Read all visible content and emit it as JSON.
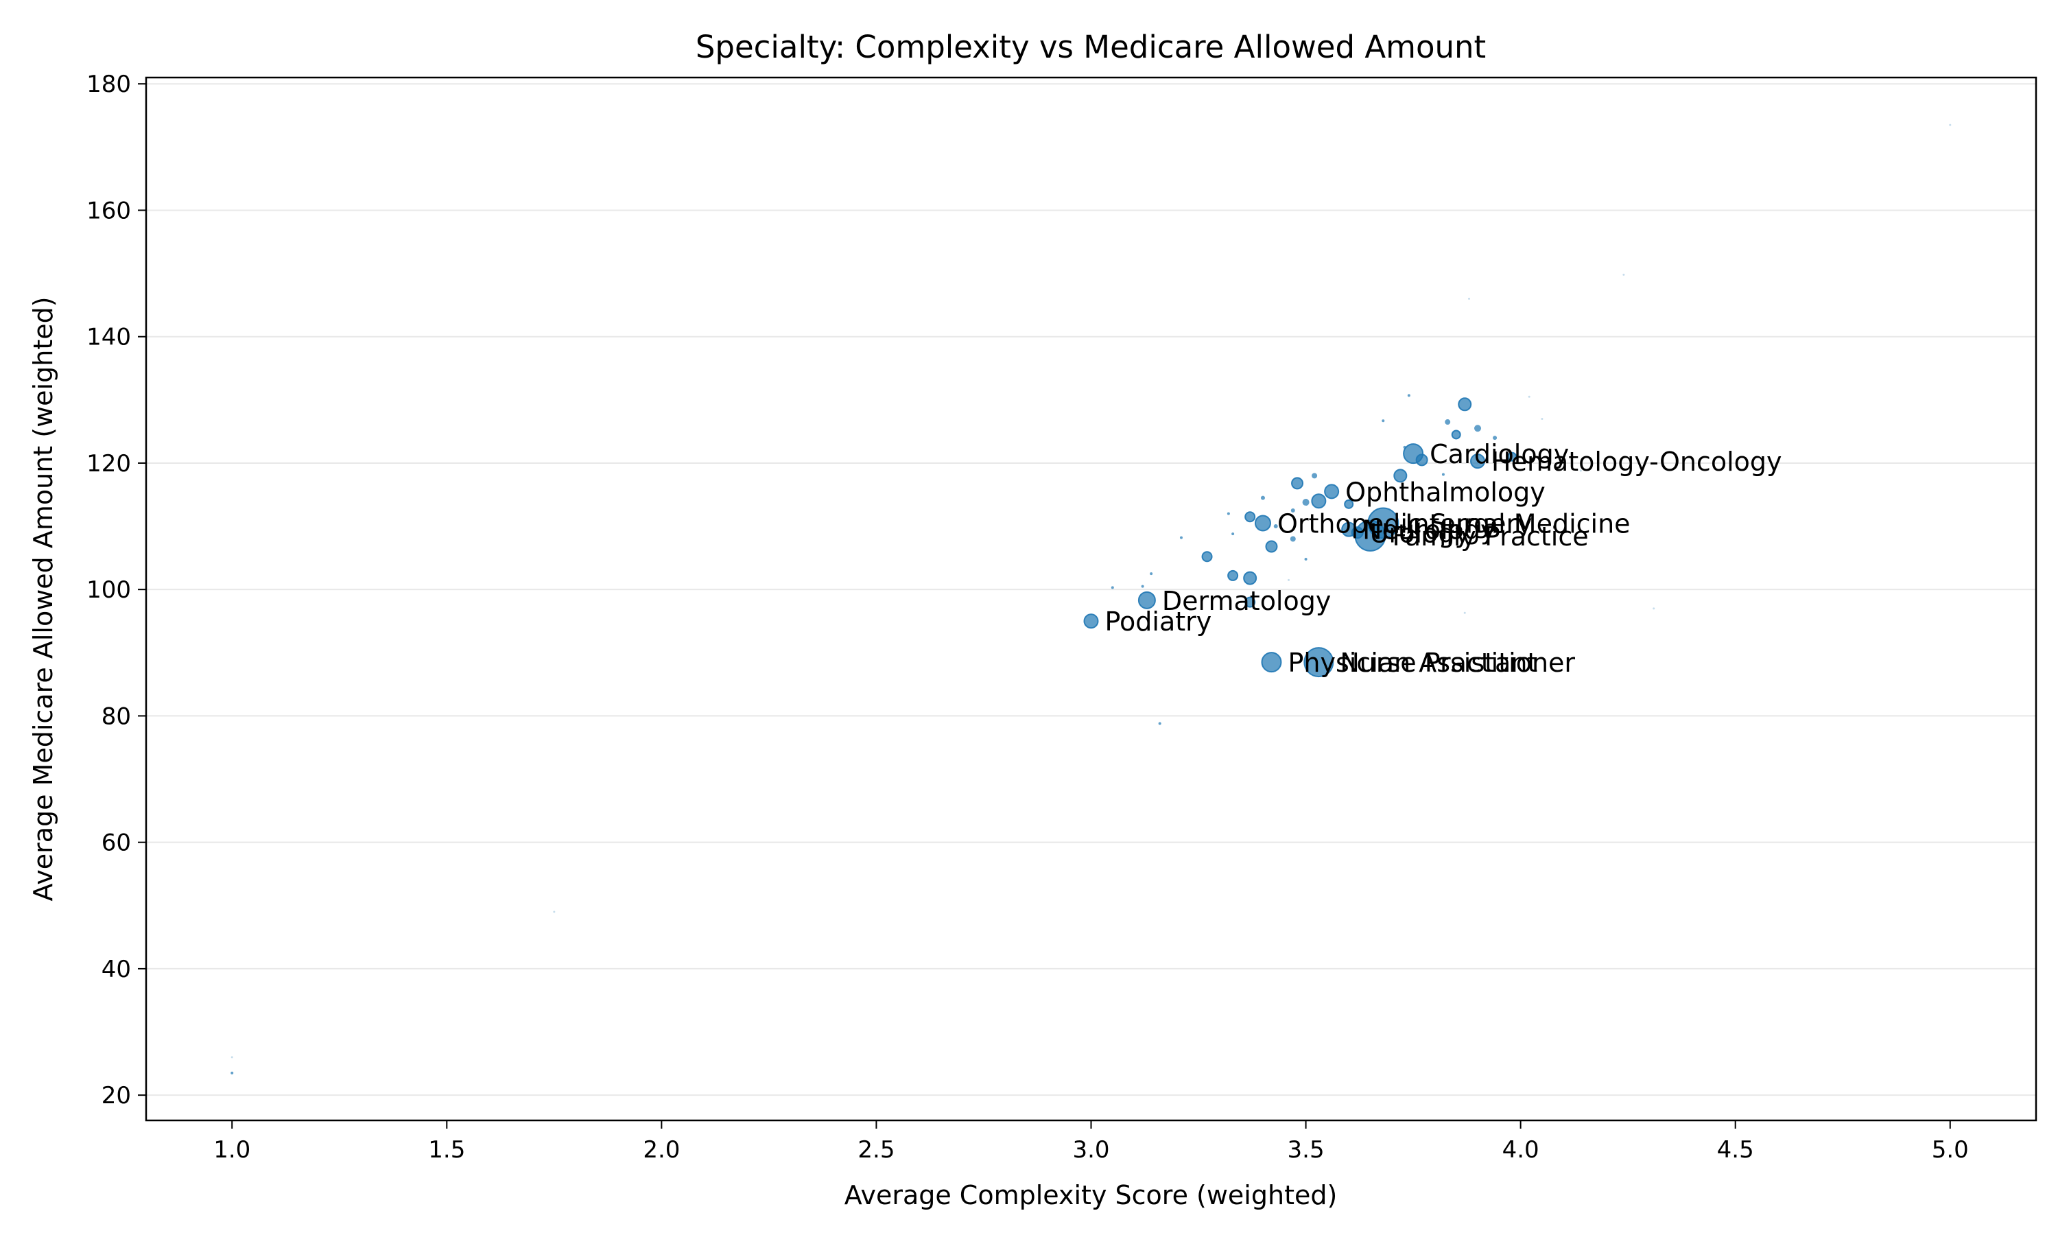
{
  "chart_data": {
    "type": "scatter",
    "title": "Specialty: Complexity vs Medicare Allowed Amount",
    "xlabel": "Average Complexity Score (weighted)",
    "ylabel": "Average Medicare Allowed Amount (weighted)",
    "xlim": [
      0.8,
      5.2
    ],
    "ylim": [
      16,
      181
    ],
    "xticks": [
      1.0,
      1.5,
      2.0,
      2.5,
      3.0,
      3.5,
      4.0,
      4.5,
      5.0
    ],
    "xtick_labels": [
      "1.0",
      "1.5",
      "2.0",
      "2.5",
      "3.0",
      "3.5",
      "4.0",
      "4.5",
      "5.0"
    ],
    "yticks": [
      20,
      40,
      60,
      80,
      100,
      120,
      140,
      160,
      180
    ],
    "ytick_labels": [
      "20",
      "40",
      "60",
      "80",
      "100",
      "120",
      "140",
      "160",
      "180"
    ],
    "grid": "y-major",
    "marker_color": "#1f77b4",
    "marker_size_encodes": "relative volume (unlabeled)",
    "points": [
      {
        "x": 3.65,
        "y": 108.5,
        "r": 22,
        "label": "Family Practice"
      },
      {
        "x": 3.68,
        "y": 110.5,
        "r": 22,
        "label": "Internal Medicine"
      },
      {
        "x": 3.53,
        "y": 88.5,
        "r": 21,
        "label": "Nurse Practitioner"
      },
      {
        "x": 3.42,
        "y": 88.5,
        "r": 14,
        "label": "Physician Assistant"
      },
      {
        "x": 3.75,
        "y": 121.5,
        "r": 14,
        "label": "Cardiology"
      },
      {
        "x": 3.9,
        "y": 120.3,
        "r": 10,
        "label": "Hematology-Oncology"
      },
      {
        "x": 3.56,
        "y": 115.5,
        "r": 10,
        "label": "Ophthalmology"
      },
      {
        "x": 3.4,
        "y": 110.5,
        "r": 11,
        "label": "Orthopedic Surgery"
      },
      {
        "x": 3.6,
        "y": 109.5,
        "r": 10,
        "label": "Neurology"
      },
      {
        "x": 3.62,
        "y": 109.0,
        "r": 8,
        "label": "Urology"
      },
      {
        "x": 3.13,
        "y": 98.3,
        "r": 12,
        "label": "Dermatology"
      },
      {
        "x": 3.0,
        "y": 95.0,
        "r": 10,
        "label": "Podiatry"
      },
      {
        "x": 3.87,
        "y": 129.3,
        "r": 9
      },
      {
        "x": 3.72,
        "y": 118.0,
        "r": 9
      },
      {
        "x": 3.77,
        "y": 120.5,
        "r": 8
      },
      {
        "x": 3.98,
        "y": 121.0,
        "r": 6
      },
      {
        "x": 3.85,
        "y": 124.5,
        "r": 6
      },
      {
        "x": 3.9,
        "y": 125.5,
        "r": 5
      },
      {
        "x": 3.83,
        "y": 126.5,
        "r": 4
      },
      {
        "x": 3.94,
        "y": 124.0,
        "r": 3
      },
      {
        "x": 3.74,
        "y": 130.7,
        "r": 2
      },
      {
        "x": 3.68,
        "y": 126.7,
        "r": 2
      },
      {
        "x": 3.82,
        "y": 118.2,
        "r": 2
      },
      {
        "x": 3.73,
        "y": 122.5,
        "r": 2
      },
      {
        "x": 3.48,
        "y": 116.8,
        "r": 8
      },
      {
        "x": 3.53,
        "y": 114.0,
        "r": 10
      },
      {
        "x": 3.5,
        "y": 113.8,
        "r": 5
      },
      {
        "x": 3.52,
        "y": 118.0,
        "r": 4
      },
      {
        "x": 3.37,
        "y": 111.5,
        "r": 7
      },
      {
        "x": 3.4,
        "y": 114.5,
        "r": 3
      },
      {
        "x": 3.32,
        "y": 112.0,
        "r": 2
      },
      {
        "x": 3.6,
        "y": 113.5,
        "r": 6
      },
      {
        "x": 3.47,
        "y": 112.5,
        "r": 3
      },
      {
        "x": 3.42,
        "y": 106.8,
        "r": 8
      },
      {
        "x": 3.47,
        "y": 108.0,
        "r": 4
      },
      {
        "x": 3.43,
        "y": 110.0,
        "r": 3
      },
      {
        "x": 3.27,
        "y": 105.2,
        "r": 7
      },
      {
        "x": 3.37,
        "y": 101.8,
        "r": 9
      },
      {
        "x": 3.33,
        "y": 102.2,
        "r": 7
      },
      {
        "x": 3.37,
        "y": 98.0,
        "r": 7
      },
      {
        "x": 3.21,
        "y": 108.2,
        "r": 2
      },
      {
        "x": 3.33,
        "y": 108.8,
        "r": 2
      },
      {
        "x": 3.5,
        "y": 104.8,
        "r": 2
      },
      {
        "x": 3.14,
        "y": 102.5,
        "r": 2
      },
      {
        "x": 3.12,
        "y": 100.5,
        "r": 2
      },
      {
        "x": 3.05,
        "y": 100.3,
        "r": 2
      },
      {
        "x": 3.16,
        "y": 78.8,
        "r": 2
      },
      {
        "x": 1.0,
        "y": 23.5,
        "r": 2
      },
      {
        "x": 1.0,
        "y": 26.0,
        "r": 1.5
      },
      {
        "x": 1.75,
        "y": 49.0,
        "r": 1.5
      },
      {
        "x": 4.24,
        "y": 149.8,
        "r": 1.5
      },
      {
        "x": 5.0,
        "y": 173.5,
        "r": 1.5
      },
      {
        "x": 3.88,
        "y": 146.0,
        "r": 1.5
      },
      {
        "x": 4.02,
        "y": 130.5,
        "r": 1.5
      },
      {
        "x": 4.05,
        "y": 127.0,
        "r": 1.5
      },
      {
        "x": 4.14,
        "y": 118.8,
        "r": 1.5
      },
      {
        "x": 4.31,
        "y": 97.0,
        "r": 1.5
      },
      {
        "x": 3.87,
        "y": 96.3,
        "r": 1.5
      },
      {
        "x": 3.46,
        "y": 101.5,
        "r": 1.5
      }
    ]
  }
}
